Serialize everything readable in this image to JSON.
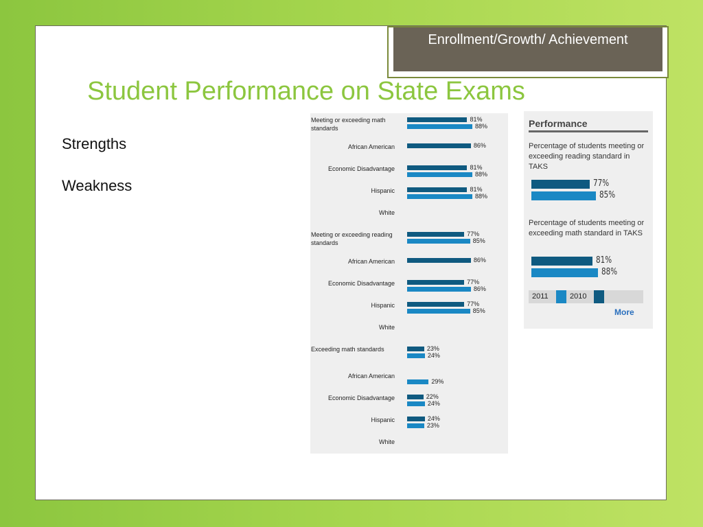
{
  "header": {
    "tag": "Enrollment/Growth/ Achievement",
    "title": "Student Performance on State Exams"
  },
  "bullets": [
    "Strengths",
    "Weakness"
  ],
  "colors": {
    "dark": "#0f5a80",
    "light": "#1a88c4",
    "title": "#8cc63f"
  },
  "chart_data": [
    {
      "type": "bar",
      "categories": [
        "Meeting or exceeding math standards",
        "African American",
        "Economic Disadvantage",
        "Hispanic",
        "White",
        "Meeting or exceeding reading standards",
        "African American",
        "Economic Disadvantage",
        "Hispanic",
        "White",
        "Exceeding math standards",
        "African American",
        "Economic Disadvantage",
        "Hispanic",
        "White"
      ],
      "series": [
        {
          "values": [
            81,
            86,
            81,
            81,
            null,
            77,
            86,
            77,
            77,
            null,
            23,
            null,
            22,
            24,
            null
          ]
        },
        {
          "values": [
            88,
            null,
            88,
            88,
            null,
            85,
            null,
            86,
            85,
            null,
            24,
            29,
            24,
            23,
            null
          ]
        }
      ],
      "labels": [
        [
          "81%",
          "86%",
          "81%",
          "81%",
          "",
          "77%",
          "86%",
          "77%",
          "77%",
          "",
          "23%",
          "",
          "22%",
          "24%",
          ""
        ],
        [
          "88%",
          "",
          "88%",
          "88%",
          "",
          "85%",
          "",
          "86%",
          "85%",
          "",
          "24%",
          "29%",
          "24%",
          "23%",
          ""
        ]
      ]
    },
    {
      "type": "bar",
      "title": "Performance",
      "groups": [
        {
          "label": "Percentage of students meeting or exceeding reading standard in TAKS",
          "values": [
            77,
            85
          ],
          "labels": [
            "77%",
            "85%"
          ]
        },
        {
          "label": "Percentage of students meeting or exceeding math standard in TAKS",
          "values": [
            81,
            88
          ],
          "labels": [
            "81%",
            "88%"
          ]
        }
      ],
      "legend": [
        "2011",
        "2010"
      ],
      "more": "More"
    }
  ]
}
